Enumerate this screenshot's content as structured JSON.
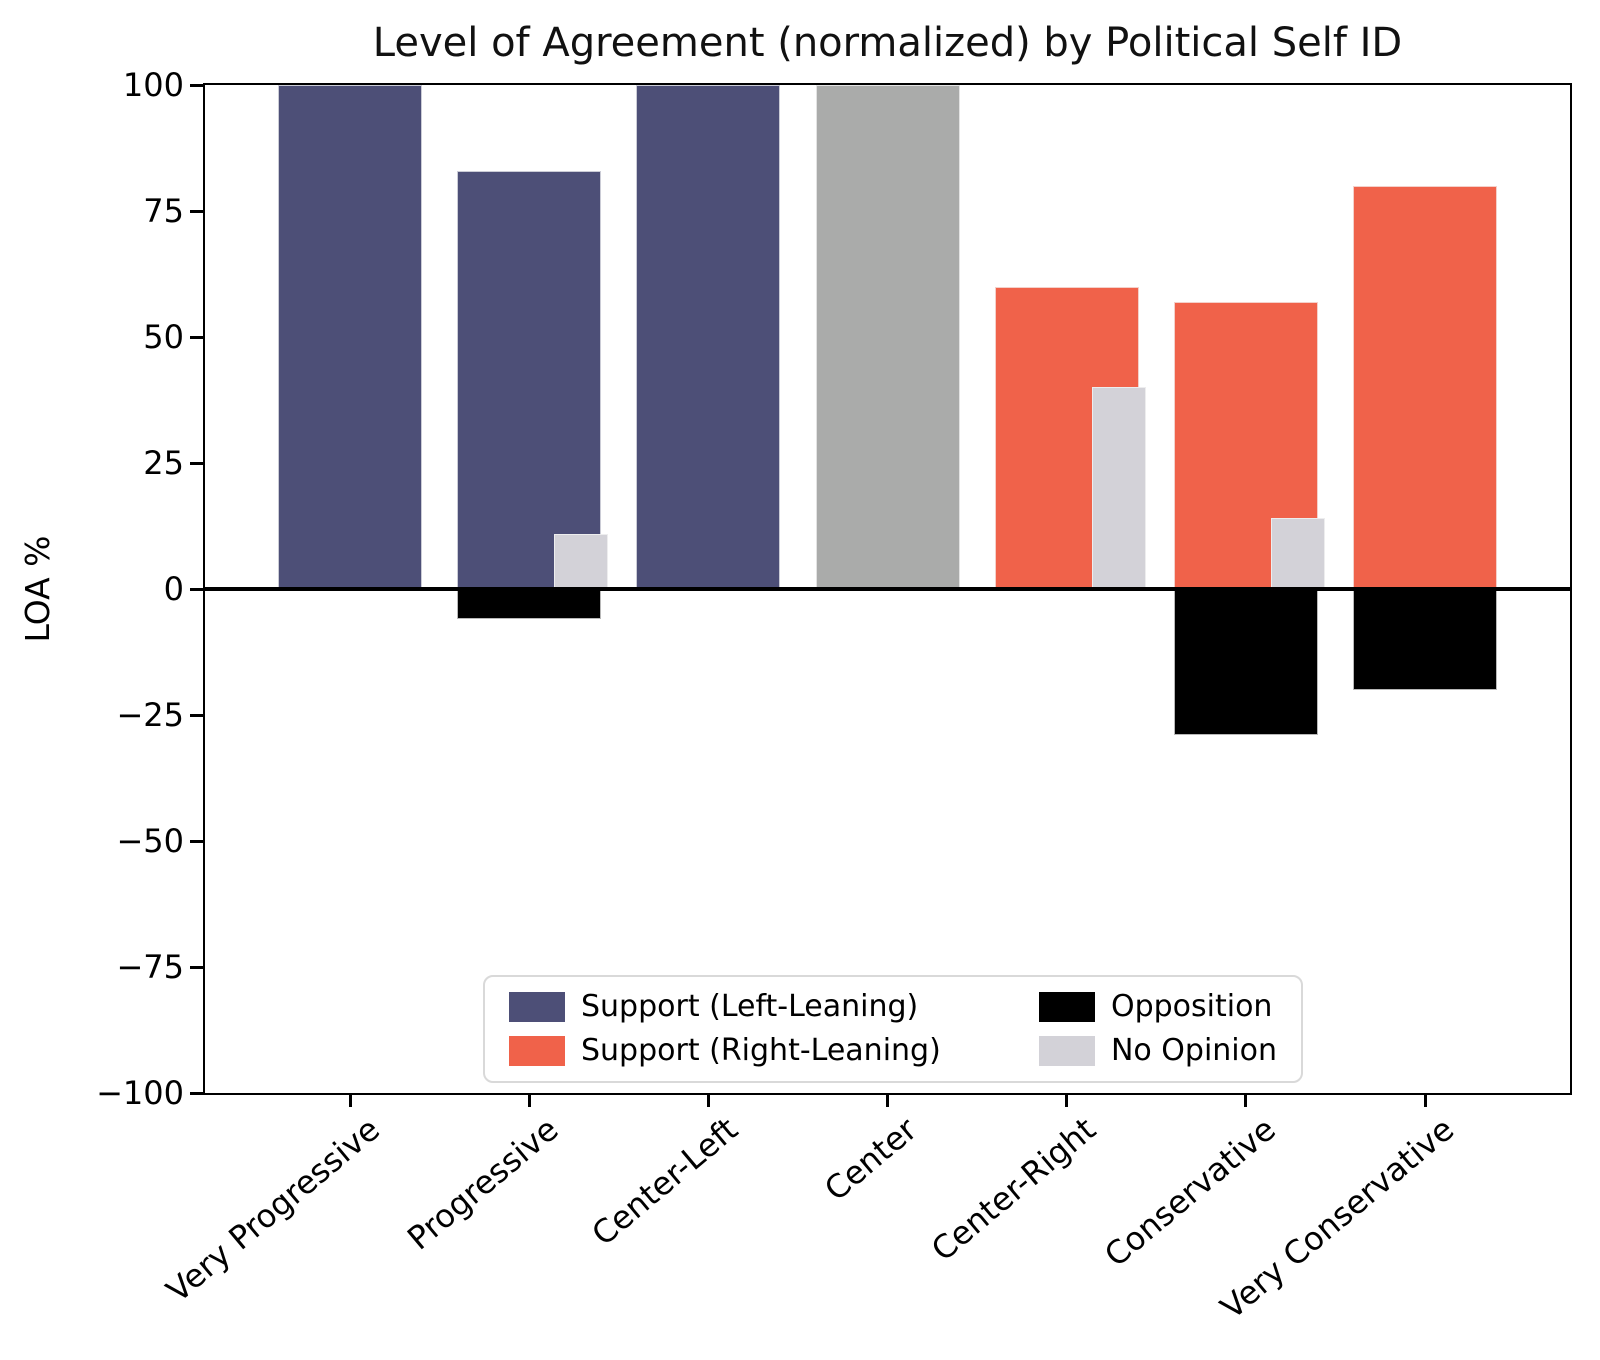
{
  "chart_data": {
    "type": "bar",
    "title": "Level of Agreement (normalized) by Political Self ID",
    "ylabel": "LOA %",
    "xlabel": "",
    "ylim": [
      -100,
      100
    ],
    "yticks": [
      100,
      75,
      50,
      25,
      0,
      -25,
      -50,
      -75,
      -100
    ],
    "ytick_labels": [
      "100",
      "75",
      "50",
      "25",
      "0",
      "−25",
      "−50",
      "−75",
      "−100"
    ],
    "categories": [
      "Very Progressive",
      "Progressive",
      "Center-Left",
      "Center",
      "Center-Right",
      "Conservative",
      "Very Conservative"
    ],
    "series": [
      {
        "name": "Support",
        "values": [
          100,
          83,
          100,
          100,
          60,
          57,
          80
        ],
        "bar_colors": [
          "#4d4f77",
          "#4d4f77",
          "#4d4f77",
          "#aaabaa",
          "#f0624a",
          "#f0624a",
          "#f0624a"
        ]
      },
      {
        "name": "Opposition",
        "values": [
          0,
          -6,
          0,
          0,
          0,
          -29,
          -20
        ],
        "color": "#000000"
      },
      {
        "name": "No Opinion",
        "values": [
          0,
          11,
          0,
          0,
          40,
          14,
          0
        ],
        "color": "#d3d2d8"
      }
    ],
    "legend": {
      "position": "lower center",
      "entries": [
        {
          "label": "Support (Left-Leaning)",
          "color": "#4d4f77"
        },
        {
          "label": "Opposition",
          "color": "#000000"
        },
        {
          "label": "Support (Right-Leaning)",
          "color": "#f0624a"
        },
        {
          "label": "No Opinion",
          "color": "#d3d2d8"
        }
      ]
    },
    "colors": {
      "support_left": "#4d4f77",
      "support_right": "#f0624a",
      "support_neutral": "#aaabaa",
      "opposition": "#000000",
      "no_opinion": "#d3d2d8",
      "axis": "#000000"
    },
    "grid": false,
    "zero_line": true
  }
}
